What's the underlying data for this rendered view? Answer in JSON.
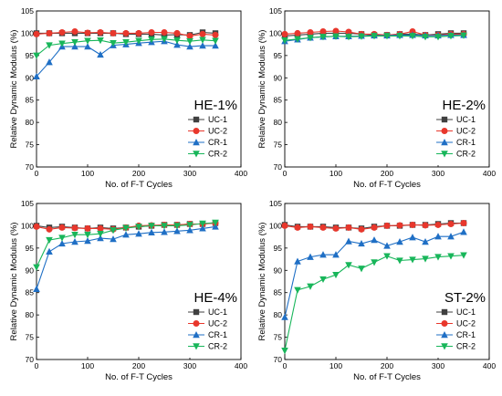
{
  "chart_data": [
    {
      "type": "line",
      "title": "HE-1%",
      "xlabel": "No. of F-T Cycles",
      "ylabel": "Relative Dynamic Modulus (%)",
      "xlim": [
        0,
        400
      ],
      "ylim": [
        70,
        105
      ],
      "xticks": [
        "0",
        "100",
        "200",
        "300",
        "400"
      ],
      "yticks": [
        "70",
        "75",
        "80",
        "85",
        "90",
        "95",
        "100",
        "105"
      ],
      "grid": false,
      "legend": "bottom-right",
      "x": [
        0,
        25,
        50,
        75,
        100,
        125,
        150,
        175,
        200,
        225,
        250,
        275,
        300,
        325,
        350
      ],
      "series": [
        {
          "name": "UC-1",
          "color": "#404040",
          "marker": "square",
          "values": [
            100,
            100,
            100,
            100,
            100,
            100,
            100,
            99.8,
            99.8,
            99.8,
            99.6,
            99.7,
            99.6,
            100.2,
            100
          ]
        },
        {
          "name": "UC-2",
          "color": "#e8372c",
          "marker": "circle",
          "values": [
            99.8,
            100,
            100.2,
            100.4,
            100.1,
            100.2,
            100,
            100,
            100,
            100.2,
            100.2,
            100,
            99.4,
            99.8,
            99.6
          ]
        },
        {
          "name": "CR-1",
          "color": "#1f6fc5",
          "marker": "triangle-up",
          "values": [
            90.3,
            93.5,
            97,
            97,
            97,
            95.2,
            97.3,
            97.5,
            97.8,
            98,
            98.2,
            97.4,
            97,
            97.2,
            97.2
          ]
        },
        {
          "name": "CR-2",
          "color": "#18b65a",
          "marker": "triangle-down",
          "values": [
            95,
            97.3,
            97.7,
            98,
            98.3,
            98.4,
            97.8,
            98,
            98.3,
            98.6,
            98.7,
            98.4,
            98.2,
            98.5,
            98.3
          ]
        }
      ]
    },
    {
      "type": "line",
      "title": "HE-2%",
      "xlabel": "No. of F-T Cycles",
      "ylabel": "Relative Dynamic Modulus (%)",
      "xlim": [
        0,
        400
      ],
      "ylim": [
        70,
        105
      ],
      "xticks": [
        "0",
        "100",
        "200",
        "300",
        "400"
      ],
      "yticks": [
        "70",
        "75",
        "80",
        "85",
        "90",
        "95",
        "100",
        "105"
      ],
      "grid": false,
      "legend": "bottom-right",
      "x": [
        0,
        25,
        50,
        75,
        100,
        125,
        150,
        175,
        200,
        225,
        250,
        275,
        300,
        325,
        350
      ],
      "series": [
        {
          "name": "UC-1",
          "color": "#404040",
          "marker": "square",
          "values": [
            99.4,
            99.6,
            99.8,
            100,
            100,
            100,
            99.8,
            99.6,
            99.6,
            99.8,
            99.8,
            99.6,
            99.8,
            100,
            100
          ]
        },
        {
          "name": "UC-2",
          "color": "#e8372c",
          "marker": "circle",
          "values": [
            99.8,
            100,
            100.2,
            100.4,
            100.5,
            100.3,
            99.8,
            99.8,
            99.6,
            99.8,
            100.4,
            99.6,
            99.6,
            99.8,
            99.8
          ]
        },
        {
          "name": "CR-1",
          "color": "#1f6fc5",
          "marker": "triangle-up",
          "values": [
            98.2,
            98.6,
            99,
            99.2,
            99.3,
            99.3,
            99.4,
            99.5,
            99.5,
            99.6,
            99.6,
            99.5,
            99.5,
            99.6,
            99.6
          ]
        },
        {
          "name": "CR-2",
          "color": "#18b65a",
          "marker": "triangle-down",
          "values": [
            98.4,
            98.7,
            99,
            99.2,
            99.3,
            99.2,
            99.3,
            99.4,
            99.4,
            99.4,
            99.4,
            99.2,
            99.2,
            99.4,
            99.5
          ]
        }
      ]
    },
    {
      "type": "line",
      "title": "HE-4%",
      "xlabel": "No. of F-T Cycles",
      "ylabel": "Relative Dynamic Modulus (%)",
      "xlim": [
        0,
        400
      ],
      "ylim": [
        70,
        105
      ],
      "xticks": [
        "0",
        "100",
        "200",
        "300",
        "400"
      ],
      "yticks": [
        "70",
        "75",
        "80",
        "85",
        "90",
        "95",
        "100",
        "105"
      ],
      "grid": false,
      "legend": "bottom-right",
      "x": [
        0,
        25,
        50,
        75,
        100,
        125,
        150,
        175,
        200,
        225,
        250,
        275,
        300,
        325,
        350
      ],
      "series": [
        {
          "name": "UC-1",
          "color": "#404040",
          "marker": "square",
          "values": [
            100,
            99.6,
            99.8,
            99.6,
            99.4,
            99.6,
            99.4,
            99.6,
            99.8,
            100,
            100.2,
            100.2,
            100.4,
            100.4,
            100.6
          ]
        },
        {
          "name": "UC-2",
          "color": "#e8372c",
          "marker": "circle",
          "values": [
            99.8,
            99.2,
            99.6,
            99.5,
            99.4,
            99.4,
            99.2,
            99.6,
            100,
            100.1,
            100.2,
            100.2,
            100.4,
            100.4,
            100.6
          ]
        },
        {
          "name": "CR-1",
          "color": "#1f6fc5",
          "marker": "triangle-up",
          "values": [
            85.8,
            94.2,
            96,
            96.4,
            96.6,
            97.2,
            97,
            98,
            98.2,
            98.5,
            98.6,
            98.8,
            99,
            99.4,
            99.8
          ]
        },
        {
          "name": "CR-2",
          "color": "#18b65a",
          "marker": "triangle-down",
          "values": [
            90.7,
            96.8,
            97.3,
            98,
            98,
            98.2,
            99,
            99.5,
            99.8,
            100,
            100,
            100,
            100.2,
            100.5,
            100.7
          ]
        }
      ]
    },
    {
      "type": "line",
      "title": "ST-2%",
      "xlabel": "No. of F-T Cycles",
      "ylabel": "Relative Dynamic Modulus (%)",
      "xlim": [
        0,
        400
      ],
      "ylim": [
        70,
        105
      ],
      "xticks": [
        "0",
        "100",
        "200",
        "300",
        "400"
      ],
      "yticks": [
        "70",
        "75",
        "80",
        "85",
        "90",
        "95",
        "100",
        "105"
      ],
      "grid": false,
      "legend": "bottom-right",
      "x": [
        0,
        25,
        50,
        75,
        100,
        125,
        150,
        175,
        200,
        225,
        250,
        275,
        300,
        325,
        350
      ],
      "series": [
        {
          "name": "UC-1",
          "color": "#404040",
          "marker": "square",
          "values": [
            100.2,
            99.8,
            99.8,
            99.8,
            99.6,
            99.6,
            99.4,
            99.8,
            100,
            100,
            100.2,
            100.2,
            100.4,
            100.6,
            100.6
          ]
        },
        {
          "name": "UC-2",
          "color": "#e8372c",
          "marker": "circle",
          "values": [
            100,
            99.6,
            99.8,
            99.6,
            99.4,
            99.6,
            99.2,
            99.6,
            100,
            100.1,
            100.2,
            100.1,
            100.2,
            100.4,
            100.6
          ]
        },
        {
          "name": "CR-1",
          "color": "#1f6fc5",
          "marker": "triangle-up",
          "values": [
            79.5,
            92,
            93,
            93.5,
            93.5,
            96.5,
            96,
            96.8,
            95.5,
            96.4,
            97.4,
            96.4,
            97.6,
            97.6,
            98.6
          ]
        },
        {
          "name": "CR-2",
          "color": "#18b65a",
          "marker": "triangle-down",
          "values": [
            72,
            85.6,
            86.4,
            88,
            89,
            91.2,
            90.4,
            91.8,
            93.2,
            92.2,
            92.4,
            92.6,
            93,
            93.2,
            93.4
          ]
        }
      ]
    }
  ]
}
